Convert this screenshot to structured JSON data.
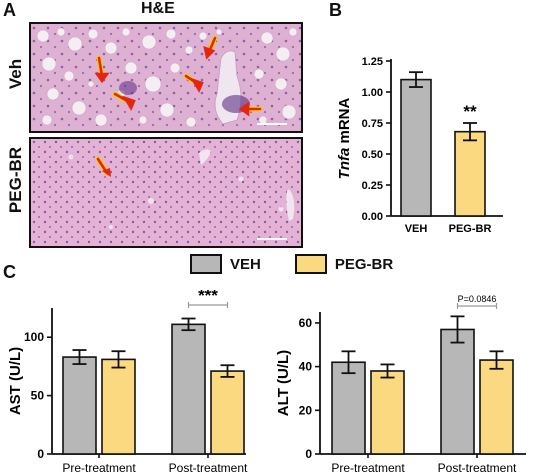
{
  "panels": {
    "a_letter": "A",
    "b_letter": "B",
    "c_letter": "C",
    "he_title": "H&E",
    "row_top": "Veh",
    "row_bottom": "PEG-BR"
  },
  "legend": [
    {
      "label": "VEH",
      "color": "#b7b7b7"
    },
    {
      "label": "PEG-BR",
      "color": "#fbd980"
    }
  ],
  "colors": {
    "veh": "#b7b7b7",
    "peg": "#fbd980",
    "histo_bg": "#e2b4d6",
    "arrow": "#e6250f",
    "arrow_outline": "#f6e000"
  },
  "chart_data": [
    {
      "type": "bar",
      "panel": "B",
      "ylabel_italic": "Tnfa",
      "ylabel_rest": " mRNA",
      "categories": [
        "VEH",
        "PEG-BR"
      ],
      "values": [
        1.1,
        0.68
      ],
      "errors": [
        0.06,
        0.07
      ],
      "ylim": [
        0,
        1.25
      ],
      "yticks": [
        "0.00",
        "0.25",
        "0.50",
        "0.75",
        "1.00",
        "1.25"
      ],
      "significance": "**"
    },
    {
      "type": "bar",
      "panel": "C-left",
      "ylabel": "AST (U/L)",
      "groups": [
        "Pre-treatment",
        "Post-treatment"
      ],
      "series": [
        {
          "name": "VEH",
          "values": [
            83,
            111
          ],
          "errors": [
            6,
            5
          ]
        },
        {
          "name": "PEG-BR",
          "values": [
            81,
            71
          ],
          "errors": [
            7,
            5
          ]
        }
      ],
      "ylim": [
        0,
        125
      ],
      "yticks": [
        "0",
        "50",
        "100"
      ],
      "significance": "***"
    },
    {
      "type": "bar",
      "panel": "C-right",
      "ylabel": "ALT (U/L)",
      "groups": [
        "Pre-treatment",
        "Post-treatment"
      ],
      "series": [
        {
          "name": "VEH",
          "values": [
            42,
            57
          ],
          "errors": [
            5,
            6
          ]
        },
        {
          "name": "PEG-BR",
          "values": [
            38,
            43
          ],
          "errors": [
            3,
            4
          ]
        }
      ],
      "ylim": [
        0,
        65
      ],
      "yticks": [
        "0",
        "20",
        "40",
        "60"
      ],
      "significance": "P=0.0846"
    }
  ]
}
